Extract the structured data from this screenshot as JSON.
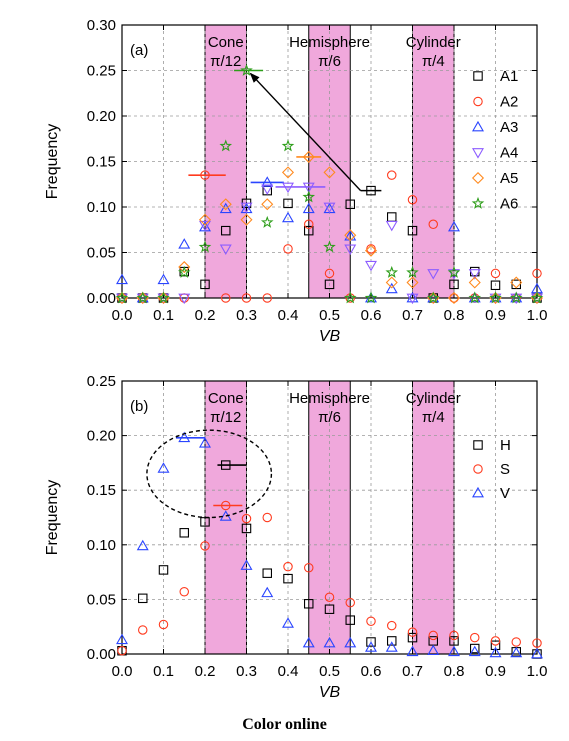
{
  "caption": "Color online",
  "chart_data": [
    {
      "type": "scatter",
      "panel_label": "(a)",
      "xlabel": "VB",
      "ylabel": "Frequency",
      "xlim": [
        0.0,
        1.0
      ],
      "ylim": [
        0.0,
        0.3
      ],
      "xticks": [
        "0.0",
        "0.1",
        "0.2",
        "0.3",
        "0.4",
        "0.5",
        "0.6",
        "0.7",
        "0.8",
        "0.9",
        "1.0"
      ],
      "yticks": [
        "0.00",
        "0.05",
        "0.10",
        "0.15",
        "0.20",
        "0.25",
        "0.30"
      ],
      "grid": true,
      "legend_position": "right",
      "bands": [
        {
          "label": "Cone",
          "sublabel": "π/12",
          "x0": 0.2,
          "x1": 0.3
        },
        {
          "label": "Hemisphere",
          "sublabel": "π/6",
          "x0": 0.45,
          "x1": 0.55
        },
        {
          "label": "Cylinder",
          "sublabel": "π/4",
          "x0": 0.7,
          "x1": 0.8
        }
      ],
      "arrow": {
        "from": [
          0.575,
          0.118
        ],
        "to": [
          0.3,
          0.25
        ]
      },
      "series": [
        {
          "name": "A1",
          "marker": "square",
          "color": "#000000",
          "x": [
            0.0,
            0.05,
            0.1,
            0.15,
            0.2,
            0.25,
            0.3,
            0.35,
            0.4,
            0.45,
            0.5,
            0.55,
            0.6,
            0.65,
            0.7,
            0.75,
            0.8,
            0.85,
            0.9,
            0.95,
            1.0
          ],
          "y": [
            0.0,
            0.0,
            0.0,
            0.029,
            0.015,
            0.074,
            0.104,
            0.118,
            0.104,
            0.074,
            0.015,
            0.103,
            0.118,
            0.089,
            0.074,
            0.0,
            0.015,
            0.029,
            0.014,
            0.015,
            0.0
          ],
          "hbars": [
            {
              "x0": 0.575,
              "x1": 0.625,
              "y": 0.118
            }
          ]
        },
        {
          "name": "A2",
          "marker": "circle",
          "color": "#ff3b1f",
          "x": [
            0.0,
            0.05,
            0.1,
            0.15,
            0.2,
            0.25,
            0.3,
            0.35,
            0.4,
            0.45,
            0.5,
            0.55,
            0.6,
            0.65,
            0.7,
            0.75,
            0.8,
            0.85,
            0.9,
            0.95,
            1.0
          ],
          "y": [
            0.0,
            0.0,
            0.0,
            0.0,
            0.135,
            0.0,
            0.0,
            0.0,
            0.054,
            0.081,
            0.027,
            0.0,
            0.054,
            0.135,
            0.108,
            0.081,
            0.0,
            0.0,
            0.027,
            0.0,
            0.027
          ],
          "hbars": [
            {
              "x0": 0.16,
              "x1": 0.25,
              "y": 0.135
            }
          ]
        },
        {
          "name": "A3",
          "marker": "triangle-up",
          "color": "#2a45ff",
          "x": [
            0.0,
            0.05,
            0.1,
            0.15,
            0.2,
            0.25,
            0.3,
            0.35,
            0.4,
            0.45,
            0.5,
            0.55,
            0.6,
            0.65,
            0.7,
            0.75,
            0.8,
            0.85,
            0.9,
            0.95,
            1.0
          ],
          "y": [
            0.02,
            0.0,
            0.02,
            0.059,
            0.078,
            0.098,
            0.098,
            0.127,
            0.088,
            0.098,
            0.098,
            0.068,
            0.0,
            0.01,
            0.0,
            0.0,
            0.078,
            0.0,
            0.0,
            0.0,
            0.01
          ],
          "hbars": [
            {
              "x0": 0.31,
              "x1": 0.39,
              "y": 0.127
            }
          ]
        },
        {
          "name": "A4",
          "marker": "triangle-down",
          "color": "#8c5cff",
          "x": [
            0.0,
            0.05,
            0.1,
            0.15,
            0.2,
            0.25,
            0.3,
            0.35,
            0.4,
            0.45,
            0.5,
            0.55,
            0.6,
            0.65,
            0.7,
            0.75,
            0.8,
            0.85,
            0.9,
            0.95,
            1.0
          ],
          "y": [
            0.0,
            0.0,
            0.0,
            0.0,
            0.08,
            0.054,
            0.1,
            0.12,
            0.122,
            0.122,
            0.1,
            0.054,
            0.036,
            0.08,
            0.0,
            0.027,
            0.027,
            0.027,
            0.0,
            0.0,
            0.0
          ],
          "hbars": [
            {
              "x0": 0.37,
              "x1": 0.49,
              "y": 0.122
            }
          ]
        },
        {
          "name": "A5",
          "marker": "diamond",
          "color": "#ff8a1f",
          "x": [
            0.0,
            0.05,
            0.1,
            0.15,
            0.2,
            0.25,
            0.3,
            0.35,
            0.4,
            0.45,
            0.5,
            0.55,
            0.6,
            0.65,
            0.7,
            0.75,
            0.8,
            0.85,
            0.9,
            0.95,
            1.0
          ],
          "y": [
            0.0,
            0.0,
            0.0,
            0.034,
            0.086,
            0.103,
            0.086,
            0.103,
            0.138,
            0.155,
            0.138,
            0.069,
            0.052,
            0.017,
            0.017,
            0.0,
            0.0,
            0.017,
            0.0,
            0.017,
            0.0
          ],
          "hbars": [
            {
              "x0": 0.42,
              "x1": 0.48,
              "y": 0.155
            }
          ]
        },
        {
          "name": "A6",
          "marker": "star",
          "color": "#2e9e1a",
          "x": [
            0.0,
            0.05,
            0.1,
            0.15,
            0.2,
            0.25,
            0.3,
            0.35,
            0.4,
            0.45,
            0.5,
            0.55,
            0.6,
            0.65,
            0.7,
            0.75,
            0.8,
            0.85,
            0.9,
            0.95,
            1.0
          ],
          "y": [
            0.0,
            0.0,
            0.0,
            0.028,
            0.056,
            0.167,
            0.25,
            0.083,
            0.167,
            0.111,
            0.056,
            0.0,
            0.0,
            0.028,
            0.028,
            0.0,
            0.028,
            0.0,
            0.0,
            0.0,
            0.0
          ],
          "hbars": [
            {
              "x0": 0.27,
              "x1": 0.34,
              "y": 0.25
            }
          ]
        }
      ]
    },
    {
      "type": "scatter",
      "panel_label": "(b)",
      "xlabel": "VB",
      "ylabel": "Frequency",
      "xlim": [
        0.0,
        1.0
      ],
      "ylim": [
        0.0,
        0.25
      ],
      "xticks": [
        "0.0",
        "0.1",
        "0.2",
        "0.3",
        "0.4",
        "0.5",
        "0.6",
        "0.7",
        "0.8",
        "0.9",
        "1.0"
      ],
      "yticks": [
        "0.00",
        "0.05",
        "0.10",
        "0.15",
        "0.20",
        "0.25"
      ],
      "grid": true,
      "legend_position": "right",
      "bands": [
        {
          "label": "Cone",
          "sublabel": "π/12",
          "x0": 0.2,
          "x1": 0.3
        },
        {
          "label": "Hemisphere",
          "sublabel": "π/6",
          "x0": 0.45,
          "x1": 0.55
        },
        {
          "label": "Cylinder",
          "sublabel": "π/4",
          "x0": 0.7,
          "x1": 0.8
        }
      ],
      "ellipse": {
        "cx": 0.21,
        "cy": 0.165,
        "rx": 0.15,
        "ry": 0.04
      },
      "series": [
        {
          "name": "H",
          "marker": "square",
          "color": "#000000",
          "x": [
            0.0,
            0.05,
            0.1,
            0.15,
            0.2,
            0.25,
            0.3,
            0.35,
            0.4,
            0.45,
            0.5,
            0.55,
            0.6,
            0.65,
            0.7,
            0.75,
            0.8,
            0.85,
            0.9,
            0.95,
            1.0
          ],
          "y": [
            0.003,
            0.051,
            0.077,
            0.111,
            0.121,
            0.173,
            0.115,
            0.074,
            0.069,
            0.046,
            0.041,
            0.031,
            0.011,
            0.012,
            0.015,
            0.012,
            0.012,
            0.005,
            0.008,
            0.002,
            0.0
          ],
          "hbars": [
            {
              "x0": 0.23,
              "x1": 0.3,
              "y": 0.173
            }
          ]
        },
        {
          "name": "S",
          "marker": "circle",
          "color": "#ff3b1f",
          "x": [
            0.0,
            0.05,
            0.1,
            0.15,
            0.2,
            0.25,
            0.3,
            0.35,
            0.4,
            0.45,
            0.5,
            0.55,
            0.6,
            0.65,
            0.7,
            0.75,
            0.8,
            0.85,
            0.9,
            0.95,
            1.0
          ],
          "y": [
            0.003,
            0.022,
            0.027,
            0.057,
            0.099,
            0.136,
            0.124,
            0.125,
            0.08,
            0.079,
            0.052,
            0.047,
            0.03,
            0.026,
            0.02,
            0.017,
            0.017,
            0.015,
            0.012,
            0.011,
            0.01
          ],
          "hbars": [
            {
              "x0": 0.22,
              "x1": 0.29,
              "y": 0.136
            }
          ]
        },
        {
          "name": "V",
          "marker": "triangle-up",
          "color": "#2a45ff",
          "x": [
            0.0,
            0.05,
            0.1,
            0.15,
            0.2,
            0.25,
            0.3,
            0.35,
            0.4,
            0.45,
            0.5,
            0.55,
            0.6,
            0.65,
            0.7,
            0.75,
            0.8,
            0.85,
            0.9,
            0.95,
            1.0
          ],
          "y": [
            0.013,
            0.099,
            0.17,
            0.198,
            0.193,
            0.126,
            0.081,
            0.056,
            0.028,
            0.01,
            0.01,
            0.01,
            0.006,
            0.006,
            0.002,
            0.003,
            0.002,
            0.002,
            0.001,
            0.001,
            0.0
          ],
          "hbars": [
            {
              "x0": 0.13,
              "x1": 0.2,
              "y": 0.198
            }
          ]
        }
      ]
    }
  ]
}
